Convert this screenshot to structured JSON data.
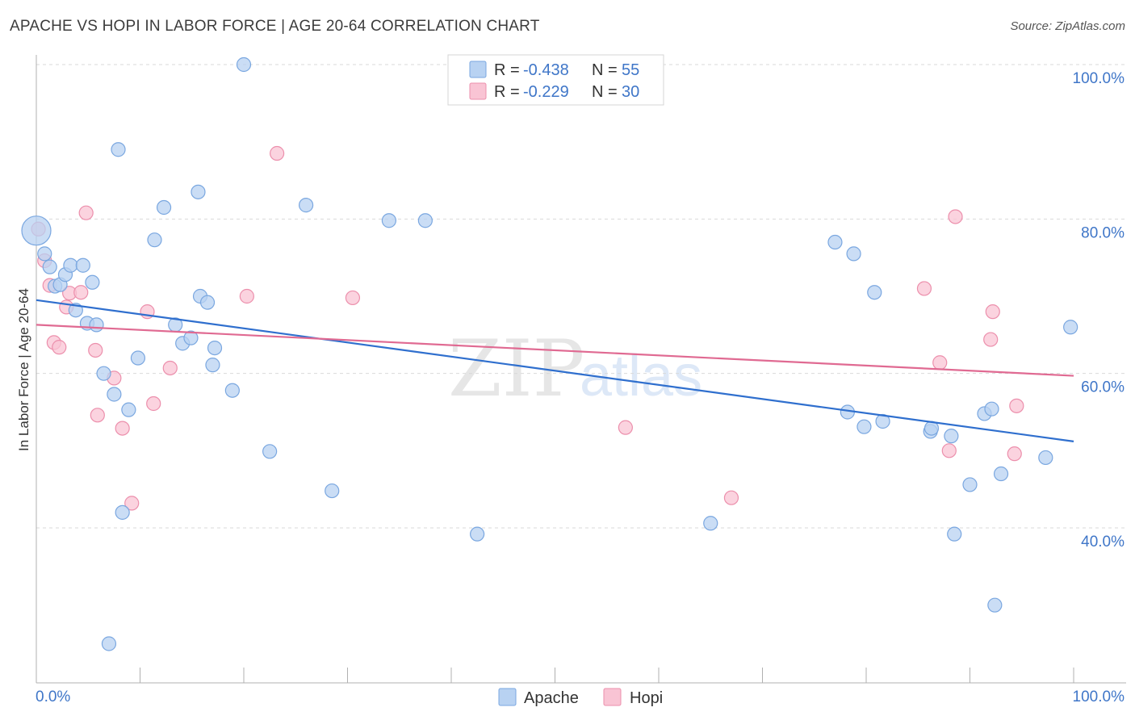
{
  "header": {
    "title": "APACHE VS HOPI IN LABOR FORCE | AGE 20-64 CORRELATION CHART",
    "source": "Source: ZipAtlas.com"
  },
  "watermark": {
    "zip": "ZIP",
    "atlas": "atlas"
  },
  "legend": {
    "apache": {
      "r_label": "R = ",
      "r_value": "-0.438",
      "n_label": "N = ",
      "n_value": "55"
    },
    "hopi": {
      "r_label": "R = ",
      "r_value": "-0.229",
      "n_label": "N = ",
      "n_value": "30"
    }
  },
  "colors": {
    "apache_fill": "#b8d2f2",
    "apache_stroke": "#7aa7e0",
    "apache_line": "#2f6fce",
    "hopi_fill": "#f9c4d4",
    "hopi_stroke": "#ec8fac",
    "hopi_line": "#e06a92",
    "grid": "#d9d9d9",
    "axis_text": "#3f76c8"
  },
  "chart_data": {
    "type": "scatter",
    "title": "APACHE VS HOPI IN LABOR FORCE | AGE 20-64 CORRELATION CHART",
    "xlabel": "",
    "ylabel": "In Labor Force | Age 20-64",
    "xlim": [
      0,
      100
    ],
    "ylim": [
      20,
      102
    ],
    "x_tick_labels": [
      "0.0%",
      "100.0%"
    ],
    "y_ticks": [
      40,
      60,
      80,
      100
    ],
    "y_tick_labels": [
      "40.0%",
      "60.0%",
      "80.0%",
      "100.0%"
    ],
    "series": [
      {
        "name": "Apache",
        "trend": {
          "x0": 0,
          "y0": 69.5,
          "x1": 100,
          "y1": 51.2
        },
        "points": [
          {
            "x": 0.0,
            "y": 78.5,
            "big": true
          },
          {
            "x": 0.8,
            "y": 75.5
          },
          {
            "x": 1.3,
            "y": 73.8
          },
          {
            "x": 1.8,
            "y": 71.3
          },
          {
            "x": 2.3,
            "y": 71.5
          },
          {
            "x": 2.8,
            "y": 72.8
          },
          {
            "x": 3.3,
            "y": 74.0
          },
          {
            "x": 3.8,
            "y": 68.2
          },
          {
            "x": 4.5,
            "y": 74.0
          },
          {
            "x": 4.9,
            "y": 66.5
          },
          {
            "x": 5.4,
            "y": 71.8
          },
          {
            "x": 5.8,
            "y": 66.3
          },
          {
            "x": 6.5,
            "y": 60.0
          },
          {
            "x": 7.0,
            "y": 25.0
          },
          {
            "x": 7.5,
            "y": 57.3
          },
          {
            "x": 7.9,
            "y": 89.0
          },
          {
            "x": 8.3,
            "y": 42.0
          },
          {
            "x": 8.9,
            "y": 55.3
          },
          {
            "x": 9.8,
            "y": 62.0
          },
          {
            "x": 11.4,
            "y": 77.3
          },
          {
            "x": 12.3,
            "y": 81.5
          },
          {
            "x": 13.4,
            "y": 66.3
          },
          {
            "x": 14.1,
            "y": 63.9
          },
          {
            "x": 14.9,
            "y": 64.6
          },
          {
            "x": 15.6,
            "y": 83.5
          },
          {
            "x": 15.8,
            "y": 70.0
          },
          {
            "x": 16.5,
            "y": 69.2
          },
          {
            "x": 17.0,
            "y": 61.1
          },
          {
            "x": 17.2,
            "y": 63.3
          },
          {
            "x": 18.9,
            "y": 57.8
          },
          {
            "x": 20.0,
            "y": 100.0
          },
          {
            "x": 22.5,
            "y": 49.9
          },
          {
            "x": 26.0,
            "y": 81.8
          },
          {
            "x": 28.5,
            "y": 44.8
          },
          {
            "x": 34.0,
            "y": 79.8
          },
          {
            "x": 37.5,
            "y": 79.8
          },
          {
            "x": 42.5,
            "y": 39.2
          },
          {
            "x": 65.0,
            "y": 40.6
          },
          {
            "x": 77.0,
            "y": 77.0
          },
          {
            "x": 78.8,
            "y": 75.5
          },
          {
            "x": 78.2,
            "y": 55.0
          },
          {
            "x": 79.8,
            "y": 53.1
          },
          {
            "x": 80.8,
            "y": 70.5
          },
          {
            "x": 81.6,
            "y": 53.8
          },
          {
            "x": 86.2,
            "y": 52.5
          },
          {
            "x": 86.3,
            "y": 52.9
          },
          {
            "x": 88.2,
            "y": 51.9
          },
          {
            "x": 88.5,
            "y": 39.2
          },
          {
            "x": 90.0,
            "y": 45.6
          },
          {
            "x": 91.4,
            "y": 54.8
          },
          {
            "x": 92.1,
            "y": 55.4
          },
          {
            "x": 93.0,
            "y": 47.0
          },
          {
            "x": 92.4,
            "y": 30.0
          },
          {
            "x": 97.3,
            "y": 49.1
          },
          {
            "x": 99.7,
            "y": 66.0
          }
        ]
      },
      {
        "name": "Hopi",
        "trend": {
          "x0": 0,
          "y0": 66.3,
          "x1": 100,
          "y1": 59.7
        },
        "points": [
          {
            "x": 0.2,
            "y": 78.7
          },
          {
            "x": 0.8,
            "y": 74.6
          },
          {
            "x": 1.3,
            "y": 71.4
          },
          {
            "x": 1.7,
            "y": 64.0
          },
          {
            "x": 2.2,
            "y": 63.4
          },
          {
            "x": 2.9,
            "y": 68.6
          },
          {
            "x": 3.2,
            "y": 70.4
          },
          {
            "x": 4.3,
            "y": 70.5
          },
          {
            "x": 4.8,
            "y": 80.8
          },
          {
            "x": 5.7,
            "y": 63.0
          },
          {
            "x": 5.9,
            "y": 54.6
          },
          {
            "x": 7.5,
            "y": 59.4
          },
          {
            "x": 8.3,
            "y": 52.9
          },
          {
            "x": 9.2,
            "y": 43.2
          },
          {
            "x": 10.7,
            "y": 68.0
          },
          {
            "x": 11.3,
            "y": 56.1
          },
          {
            "x": 12.9,
            "y": 60.7
          },
          {
            "x": 20.3,
            "y": 70.0
          },
          {
            "x": 23.2,
            "y": 88.5
          },
          {
            "x": 30.5,
            "y": 69.8
          },
          {
            "x": 56.8,
            "y": 53.0
          },
          {
            "x": 67.0,
            "y": 43.9
          },
          {
            "x": 85.6,
            "y": 71.0
          },
          {
            "x": 87.1,
            "y": 61.4
          },
          {
            "x": 88.0,
            "y": 50.0
          },
          {
            "x": 88.6,
            "y": 80.3
          },
          {
            "x": 92.0,
            "y": 64.4
          },
          {
            "x": 92.2,
            "y": 68.0
          },
          {
            "x": 94.3,
            "y": 49.6
          },
          {
            "x": 94.5,
            "y": 55.8
          }
        ]
      }
    ]
  }
}
